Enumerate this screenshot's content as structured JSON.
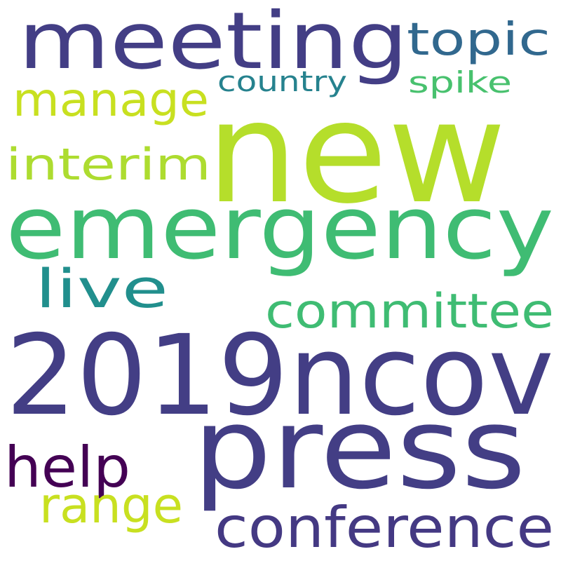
{
  "word_cloud": {
    "background_color": "#ffffff",
    "words": [
      {
        "text": "meeting",
        "color": "#433e85"
      },
      {
        "text": "topic",
        "color": "#31688e"
      },
      {
        "text": "country",
        "color": "#26828e"
      },
      {
        "text": "spike",
        "color": "#48c16e"
      },
      {
        "text": "manage",
        "color": "#c8e020"
      },
      {
        "text": "new",
        "color": "#b5de2b"
      },
      {
        "text": "interim",
        "color": "#addc30"
      },
      {
        "text": "emergency",
        "color": "#3fbc73"
      },
      {
        "text": "live",
        "color": "#218f8d"
      },
      {
        "text": "committee",
        "color": "#3fbc73"
      },
      {
        "text": "2019ncov",
        "color": "#433e85"
      },
      {
        "text": "press",
        "color": "#433e85"
      },
      {
        "text": "help",
        "color": "#440154"
      },
      {
        "text": "range",
        "color": "#c8e020"
      },
      {
        "text": "conference",
        "color": "#443983"
      }
    ]
  }
}
